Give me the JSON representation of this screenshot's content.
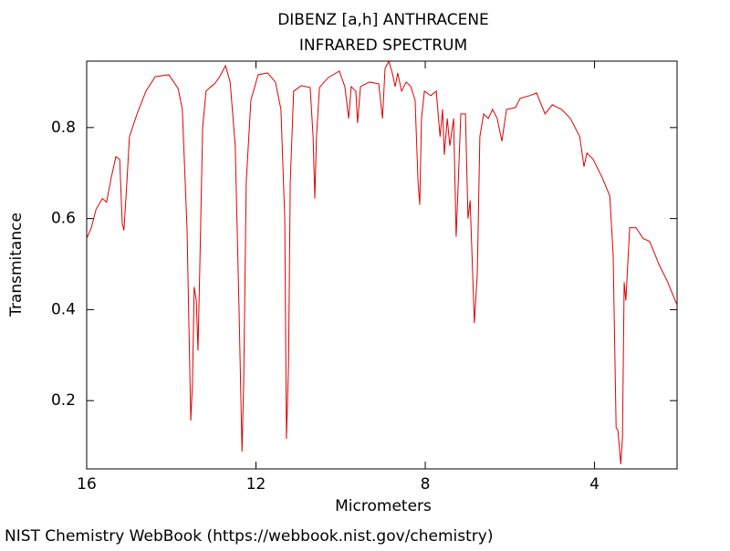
{
  "chart_data": {
    "type": "line",
    "title": "DIBENZ [a,h] ANTHRACENE",
    "subtitle": "INFRARED SPECTRUM",
    "x_label": "Micrometers",
    "y_label": "Transmitance",
    "footer": "NIST Chemistry WebBook (https://webbook.nist.gov/chemistry)",
    "xlim": [
      16,
      2.05
    ],
    "ylim": [
      0.05,
      0.946
    ],
    "xticks": [
      16,
      12,
      8,
      4
    ],
    "yticks": [
      0.2,
      0.4,
      0.6,
      0.8
    ],
    "series": [
      {
        "color": "#e00000",
        "x": [
          16.0,
          15.89,
          15.78,
          15.63,
          15.53,
          15.42,
          15.31,
          15.22,
          15.16,
          15.12,
          15.05,
          14.99,
          14.81,
          14.6,
          14.38,
          14.06,
          13.84,
          13.74,
          13.63,
          13.54,
          13.5,
          13.46,
          13.41,
          13.37,
          13.33,
          13.26,
          13.18,
          13.09,
          12.98,
          12.87,
          12.72,
          12.61,
          12.49,
          12.4,
          12.33,
          12.29,
          12.23,
          12.12,
          11.95,
          11.73,
          11.54,
          11.41,
          11.32,
          11.28,
          11.23,
          11.19,
          11.11,
          10.93,
          10.72,
          10.65,
          10.61,
          10.57,
          10.5,
          10.29,
          10.03,
          9.9,
          9.81,
          9.75,
          9.64,
          9.6,
          9.53,
          9.32,
          9.1,
          9.01,
          8.95,
          8.86,
          8.78,
          8.71,
          8.65,
          8.56,
          8.45,
          8.34,
          8.24,
          8.17,
          8.13,
          8.09,
          8.02,
          7.87,
          7.74,
          7.65,
          7.59,
          7.55,
          7.48,
          7.42,
          7.33,
          7.27,
          7.22,
          7.16,
          7.05,
          6.99,
          6.94,
          6.88,
          6.84,
          6.77,
          6.71,
          6.62,
          6.51,
          6.41,
          6.3,
          6.19,
          6.08,
          5.87,
          5.76,
          5.54,
          5.37,
          5.17,
          5.0,
          4.78,
          4.57,
          4.35,
          4.25,
          4.18,
          4.03,
          3.82,
          3.64,
          3.56,
          3.49,
          3.45,
          3.38,
          3.34,
          3.3,
          3.26,
          3.17,
          3.02,
          2.85,
          2.7,
          2.61,
          2.48,
          2.27,
          2.05
        ],
        "values": [
          0.556,
          0.58,
          0.62,
          0.644,
          0.636,
          0.69,
          0.736,
          0.73,
          0.59,
          0.574,
          0.68,
          0.78,
          0.83,
          0.88,
          0.912,
          0.916,
          0.886,
          0.84,
          0.58,
          0.156,
          0.24,
          0.45,
          0.42,
          0.31,
          0.48,
          0.8,
          0.88,
          0.888,
          0.896,
          0.91,
          0.936,
          0.9,
          0.76,
          0.4,
          0.088,
          0.24,
          0.68,
          0.86,
          0.916,
          0.92,
          0.9,
          0.84,
          0.6,
          0.116,
          0.28,
          0.68,
          0.88,
          0.892,
          0.888,
          0.78,
          0.644,
          0.78,
          0.888,
          0.91,
          0.924,
          0.89,
          0.82,
          0.89,
          0.88,
          0.81,
          0.89,
          0.9,
          0.896,
          0.82,
          0.93,
          0.946,
          0.92,
          0.89,
          0.92,
          0.88,
          0.9,
          0.89,
          0.86,
          0.68,
          0.63,
          0.82,
          0.88,
          0.87,
          0.88,
          0.78,
          0.84,
          0.74,
          0.82,
          0.76,
          0.82,
          0.56,
          0.68,
          0.83,
          0.83,
          0.6,
          0.64,
          0.48,
          0.37,
          0.48,
          0.78,
          0.83,
          0.82,
          0.84,
          0.82,
          0.77,
          0.84,
          0.844,
          0.864,
          0.87,
          0.876,
          0.83,
          0.85,
          0.84,
          0.82,
          0.78,
          0.714,
          0.744,
          0.73,
          0.69,
          0.65,
          0.52,
          0.14,
          0.136,
          0.06,
          0.12,
          0.46,
          0.42,
          0.58,
          0.58,
          0.556,
          0.55,
          0.53,
          0.5,
          0.46,
          0.41
        ]
      }
    ]
  }
}
